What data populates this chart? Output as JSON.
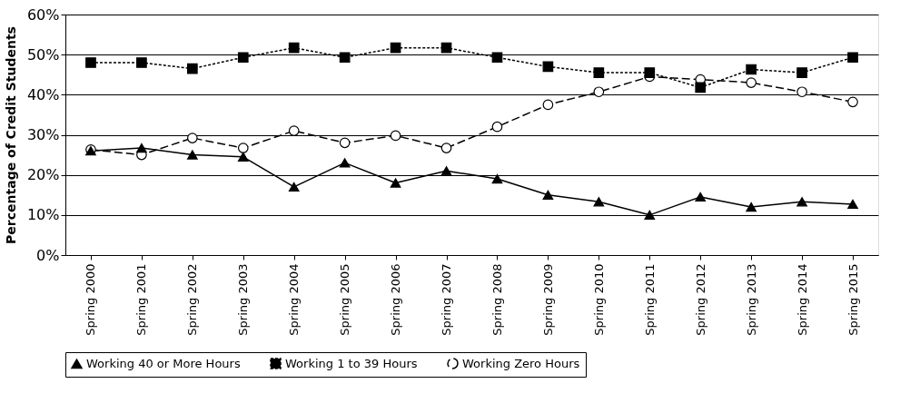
{
  "chart_data": {
    "type": "line",
    "ylabel": "Percentage of Credit Students",
    "categories": [
      "Spring 2000",
      "Spring 2001",
      "Spring 2002",
      "Spring 2003",
      "Spring 2004",
      "Spring 2005",
      "Spring 2006",
      "Spring 2007",
      "Spring 2008",
      "Spring 2009",
      "Spring 2010",
      "Spring 2011",
      "Spring 2012",
      "Spring 2013",
      "Spring 2014",
      "Spring 2015"
    ],
    "series": [
      {
        "name": "Working 40 or More Hours",
        "color": "#000000",
        "marker": "triangle",
        "line_style": "solid",
        "values": [
          26,
          26.7,
          25,
          24.5,
          17,
          23,
          18,
          21,
          19,
          15,
          13.3,
          10,
          14.5,
          12,
          13.3,
          12.7
        ]
      },
      {
        "name": "Working 1 to 39 Hours",
        "color": "#000000",
        "marker": "square",
        "line_style": "dotted",
        "values": [
          48,
          48,
          46.5,
          49.3,
          51.7,
          49.3,
          51.7,
          51.7,
          49.3,
          47,
          45.5,
          45.5,
          41.8,
          46.3,
          45.5,
          49.3
        ]
      },
      {
        "name": "Working Zero Hours",
        "color": "#000000",
        "marker": "circle",
        "line_style": "dashed",
        "values": [
          26.3,
          25,
          29.2,
          26.7,
          31,
          28,
          29.8,
          26.7,
          32,
          37.5,
          40.7,
          44.5,
          43.8,
          43,
          40.7,
          38.2
        ]
      }
    ],
    "ylim": [
      0,
      60
    ],
    "yticks": [
      {
        "value": 0,
        "label": "0%"
      },
      {
        "value": 10,
        "label": "10%"
      },
      {
        "value": 20,
        "label": "20%"
      },
      {
        "value": 30,
        "label": "30%"
      },
      {
        "value": 40,
        "label": "40%"
      },
      {
        "value": 50,
        "label": "50%"
      },
      {
        "value": 60,
        "label": "60%"
      }
    ],
    "grid": "y",
    "legend": "bottom"
  }
}
